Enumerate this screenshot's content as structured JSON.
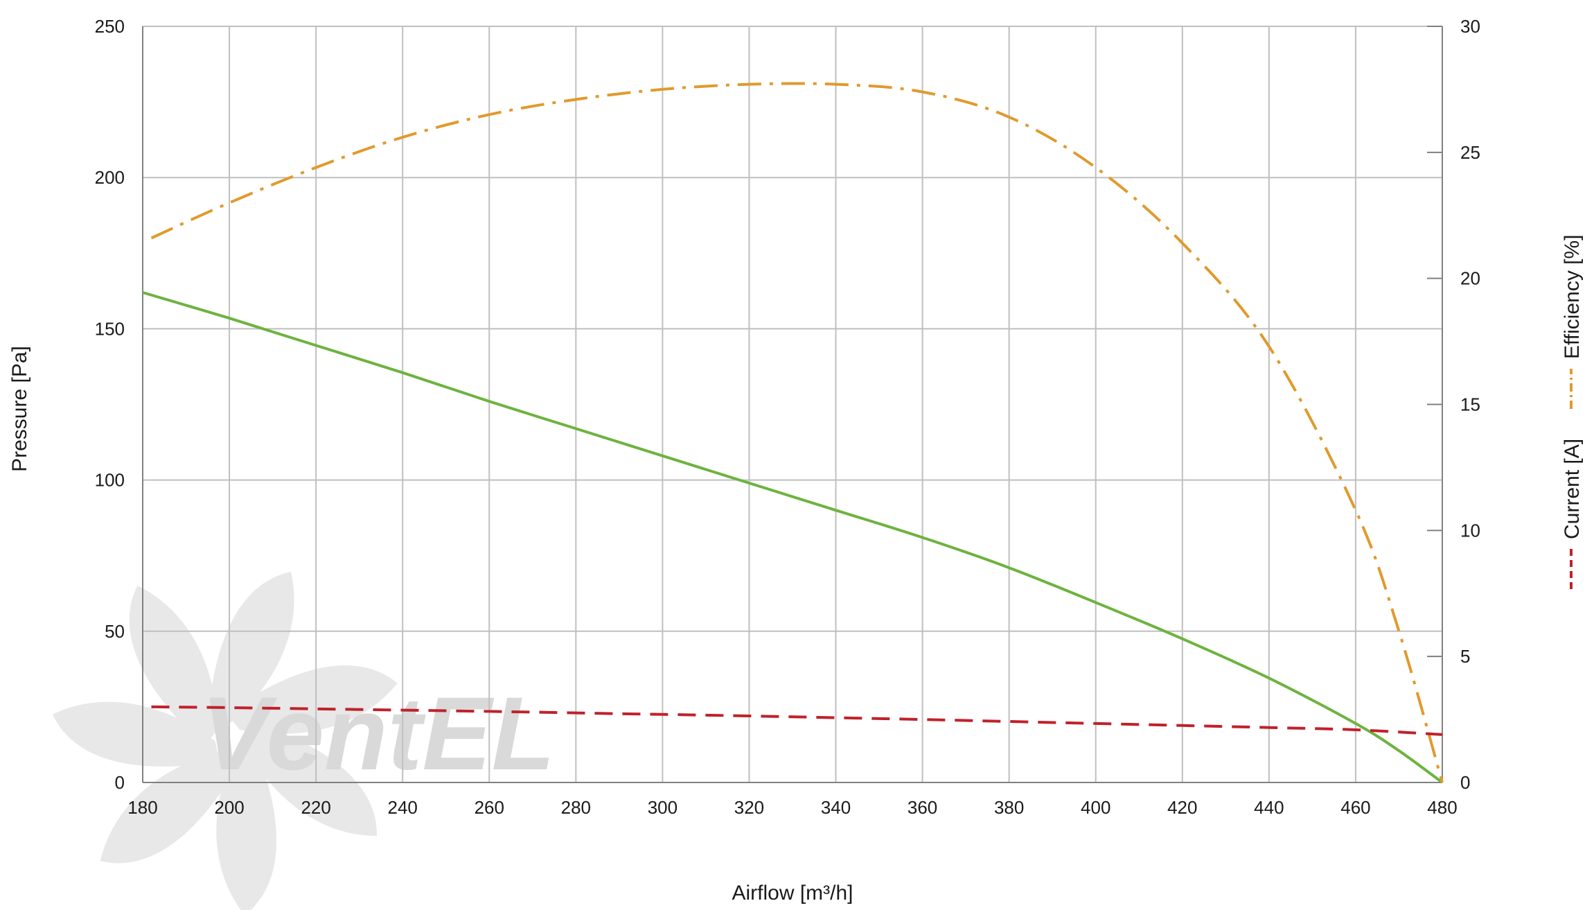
{
  "chart_data": {
    "type": "line",
    "xlabel": "Airflow [m³/h]",
    "ylabel": "Pressure [Pa]",
    "y2labels": [
      "Efficiency [%]",
      "Current [A]"
    ],
    "xlim": [
      180,
      480
    ],
    "ylim": [
      0,
      250
    ],
    "y2lim": [
      0,
      30
    ],
    "grid": true,
    "legend": "right, vertical",
    "x_ticks": [
      "180",
      "200",
      "220",
      "240",
      "260",
      "280",
      "300",
      "320",
      "340",
      "360",
      "380",
      "400",
      "420",
      "440",
      "460",
      "480"
    ],
    "y_ticks": [
      "0",
      "50",
      "100",
      "150",
      "200",
      "250"
    ],
    "y2_ticks": [
      "0",
      "5",
      "10",
      "15",
      "20",
      "25",
      "30"
    ],
    "watermark": "VentEL",
    "series": [
      {
        "name": "Pressure",
        "axis": "left",
        "color": "#6db33f",
        "style": "solid",
        "x": [
          180,
          200,
          220,
          240,
          260,
          280,
          300,
          320,
          340,
          360,
          380,
          400,
          420,
          440,
          460,
          470,
          480
        ],
        "y": [
          162,
          153.5,
          144.5,
          135.5,
          126,
          117,
          108,
          99,
          90,
          81,
          71,
          59.5,
          47.5,
          34.5,
          19.5,
          10.5,
          0
        ]
      },
      {
        "name": "Efficiency",
        "axis": "right",
        "color": "#e09a2d",
        "style": "dash-dot",
        "x": [
          182,
          200,
          220,
          240,
          260,
          280,
          300,
          320,
          340,
          360,
          380,
          400,
          420,
          440,
          460,
          470,
          480
        ],
        "y": [
          21.6,
          23.0,
          24.4,
          25.6,
          26.5,
          27.1,
          27.5,
          27.7,
          27.7,
          27.4,
          26.4,
          24.4,
          21.4,
          17.3,
          10.8,
          6.0,
          0
        ]
      },
      {
        "name": "Current",
        "axis": "right",
        "color": "#c0212b",
        "style": "dashed",
        "x": [
          182,
          200,
          220,
          240,
          260,
          280,
          300,
          320,
          340,
          360,
          380,
          400,
          420,
          440,
          460,
          480
        ],
        "y": [
          3.0,
          2.97,
          2.92,
          2.87,
          2.82,
          2.76,
          2.7,
          2.64,
          2.57,
          2.5,
          2.42,
          2.34,
          2.26,
          2.18,
          2.09,
          1.9
        ]
      }
    ]
  }
}
